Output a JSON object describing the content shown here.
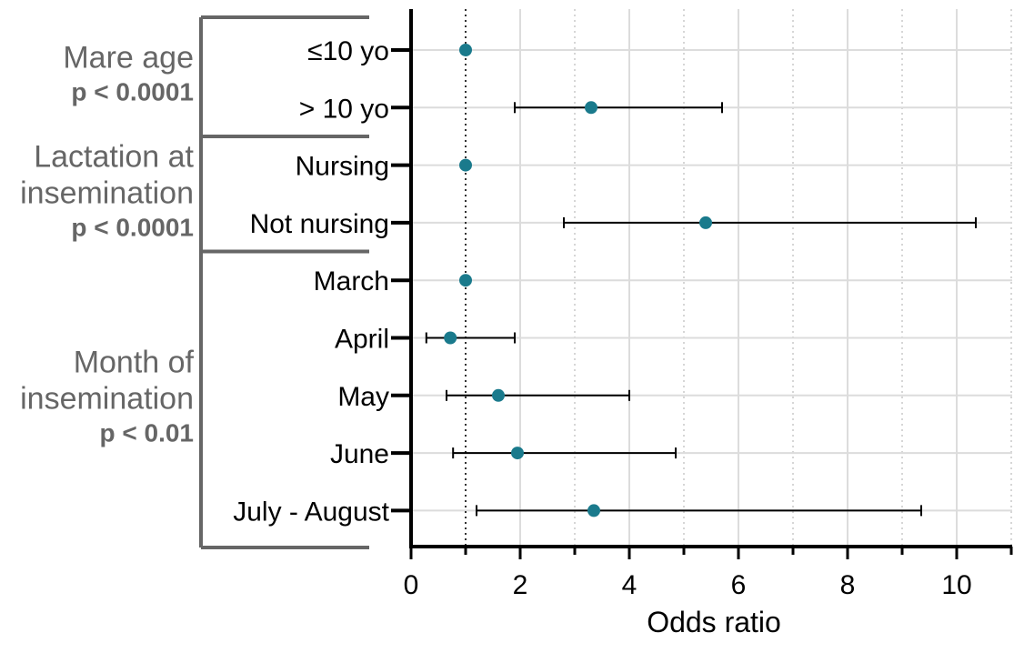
{
  "chart_data": {
    "type": "forest",
    "xlabel": "Odds ratio",
    "xlim": [
      0,
      11
    ],
    "xticks": [
      0,
      2,
      4,
      6,
      8,
      10
    ],
    "reference_line": 1,
    "grid": true,
    "colors": {
      "point": "#1a7a8c",
      "groups": "#666666",
      "axis": "#000000"
    },
    "groups": [
      {
        "name_lines": [
          "Mare age"
        ],
        "p": "p < 0.0001",
        "row_span": [
          0,
          1
        ]
      },
      {
        "name_lines": [
          "Lactation at",
          "insemination"
        ],
        "p": "p < 0.0001",
        "row_span": [
          2,
          3
        ]
      },
      {
        "name_lines": [
          "Month of",
          "insemination"
        ],
        "p": "p < 0.01",
        "row_span": [
          4,
          8
        ]
      }
    ],
    "rows": [
      {
        "label": "≤10 yo",
        "or": 1.0,
        "lower": null,
        "upper": null
      },
      {
        "label": "> 10 yo",
        "or": 3.3,
        "lower": 1.9,
        "upper": 5.7
      },
      {
        "label": "Nursing",
        "or": 1.0,
        "lower": null,
        "upper": null
      },
      {
        "label": "Not nursing",
        "or": 5.4,
        "lower": 2.8,
        "upper": 10.35
      },
      {
        "label": "March",
        "or": 1.0,
        "lower": null,
        "upper": null
      },
      {
        "label": "April",
        "or": 0.72,
        "lower": 0.28,
        "upper": 1.9
      },
      {
        "label": "May",
        "or": 1.6,
        "lower": 0.65,
        "upper": 4.0
      },
      {
        "label": "June",
        "or": 1.95,
        "lower": 0.77,
        "upper": 4.85
      },
      {
        "label": "July - August",
        "or": 3.35,
        "lower": 1.2,
        "upper": 9.35
      }
    ]
  }
}
